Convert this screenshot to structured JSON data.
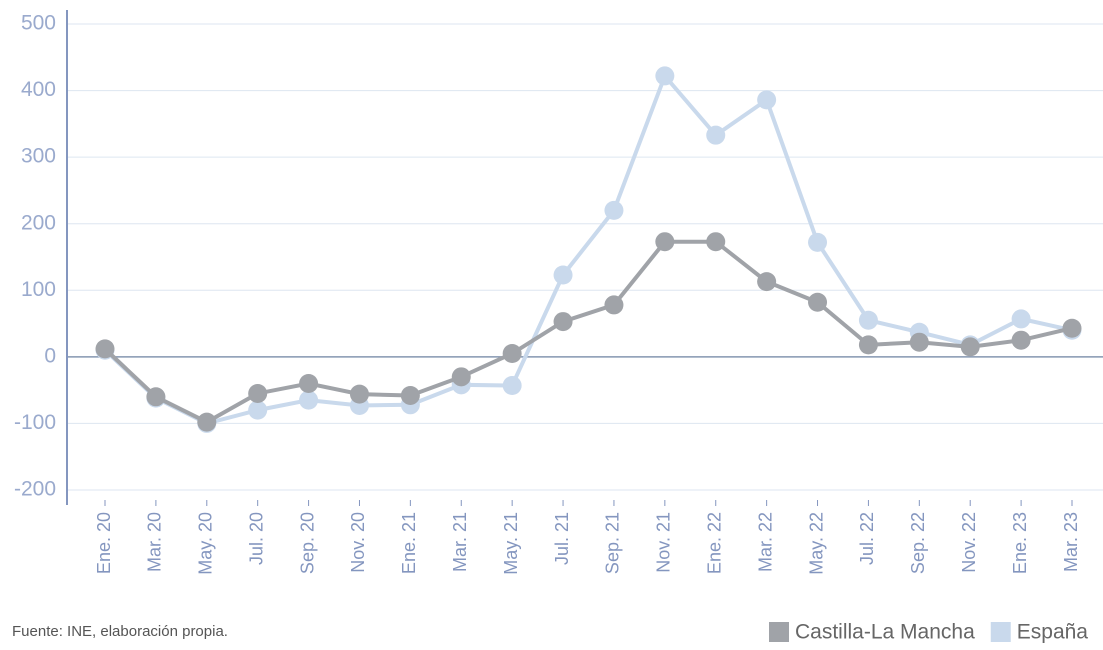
{
  "chart_data": {
    "type": "line",
    "categories": [
      "Ene. 20",
      "Mar. 20",
      "May. 20",
      "Jul. 20",
      "Sep. 20",
      "Nov. 20",
      "Ene. 21",
      "Mar. 21",
      "May. 21",
      "Jul. 21",
      "Sep. 21",
      "Nov. 21",
      "Ene. 22",
      "Mar. 22",
      "May. 22",
      "Jul. 22",
      "Sep. 22",
      "Nov. 22",
      "Ene. 23",
      "Mar. 23"
    ],
    "series": [
      {
        "name": "Castilla-La Mancha",
        "color": "#a0a3a8",
        "values": [
          12,
          -60,
          -98,
          -55,
          -40,
          -56,
          -58,
          -30,
          5,
          53,
          78,
          173,
          173,
          113,
          82,
          18,
          22,
          15,
          25,
          43
        ]
      },
      {
        "name": "España",
        "color": "#c9d9ec",
        "values": [
          10,
          -62,
          -100,
          -80,
          -65,
          -73,
          -72,
          -42,
          -43,
          123,
          220,
          422,
          333,
          386,
          172,
          55,
          37,
          18,
          57,
          40
        ]
      }
    ],
    "ylim": [
      -200,
      500
    ],
    "yticks": [
      -200,
      -100,
      0,
      100,
      200,
      300,
      400,
      500
    ],
    "grid": true,
    "source": "Fuente: INE, elaboración propia.",
    "legend": "bottom-right"
  }
}
